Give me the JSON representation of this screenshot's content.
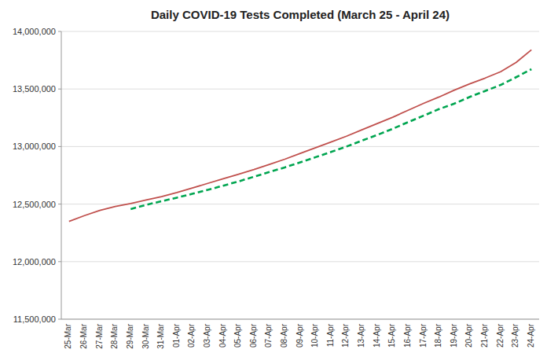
{
  "chart_data": {
    "type": "line",
    "title": "Daily COVID-19 Tests Completed (March 25 - April 24)",
    "categories": [
      "25-Mar",
      "26-Mar",
      "27-Mar",
      "28-Mar",
      "29-Mar",
      "30-Mar",
      "31-Mar",
      "01-Apr",
      "02-Apr",
      "03-Apr",
      "04-Apr",
      "05-Apr",
      "06-Apr",
      "07-Apr",
      "08-Apr",
      "09-Apr",
      "10-Apr",
      "11-Apr",
      "12-Apr",
      "13-Apr",
      "14-Apr",
      "15-Apr",
      "16-Apr",
      "17-Apr",
      "18-Apr",
      "19-Apr",
      "20-Apr",
      "21-Apr",
      "22-Apr",
      "23-Apr",
      "24-Apr"
    ],
    "series": [
      {
        "color": "#c0504d",
        "line_style": "solid",
        "values": [
          12350000,
          12400000,
          12445000,
          12480000,
          12505000,
          12535000,
          12565000,
          12600000,
          12640000,
          12680000,
          12720000,
          12760000,
          12800000,
          12845000,
          12890000,
          12940000,
          12990000,
          13040000,
          13090000,
          13145000,
          13200000,
          13255000,
          13315000,
          13375000,
          13430000,
          13490000,
          13545000,
          13595000,
          13650000,
          13730000,
          13840000
        ]
      },
      {
        "color": "#00a550",
        "line_style": "dashed",
        "values": [
          null,
          null,
          null,
          null,
          12457000,
          12493000,
          12525000,
          12556000,
          12589000,
          12624000,
          12660000,
          12697000,
          12738000,
          12779000,
          12819000,
          12863000,
          12908000,
          12953000,
          13000000,
          13051000,
          13101000,
          13154000,
          13212000,
          13268000,
          13325000,
          13373000,
          13431000,
          13483000,
          13535000,
          13602000,
          13672000
        ]
      }
    ],
    "ylim": [
      11500000,
      14000000
    ],
    "yticks": [
      {
        "value": 11500000,
        "label": "11,500,000"
      },
      {
        "value": 12000000,
        "label": "12,000,000"
      },
      {
        "value": 12500000,
        "label": "12,500,000"
      },
      {
        "value": 13000000,
        "label": "13,000,000"
      },
      {
        "value": 13500000,
        "label": "13,500,000"
      },
      {
        "value": 14000000,
        "label": "14,000,000"
      }
    ],
    "grid": true
  }
}
